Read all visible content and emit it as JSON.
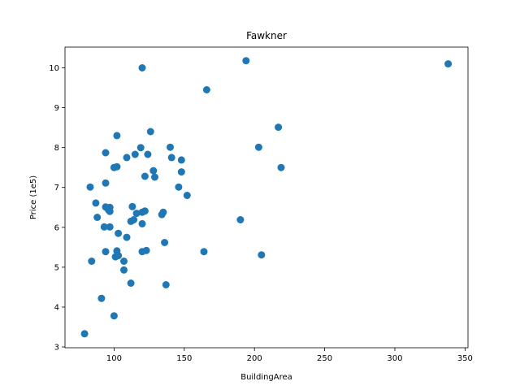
{
  "chart_data": {
    "type": "scatter",
    "title": "Fawkner",
    "xlabel": "BuildingArea",
    "ylabel": "Price (1e5)",
    "xlim": [
      65.04,
      352.1
    ],
    "ylim": [
      2.98,
      10.52
    ],
    "xticks": [
      100,
      150,
      200,
      250,
      300,
      350
    ],
    "yticks": [
      3,
      4,
      5,
      6,
      7,
      8,
      9,
      10
    ],
    "grid": false,
    "marker_color": "#1f77b4",
    "points": [
      {
        "x": 79,
        "y": 3.33
      },
      {
        "x": 83,
        "y": 7.01
      },
      {
        "x": 84,
        "y": 5.15
      },
      {
        "x": 87,
        "y": 6.61
      },
      {
        "x": 88,
        "y": 6.25
      },
      {
        "x": 91,
        "y": 4.22
      },
      {
        "x": 93,
        "y": 6.01
      },
      {
        "x": 94,
        "y": 7.87
      },
      {
        "x": 94,
        "y": 7.11
      },
      {
        "x": 94,
        "y": 5.39
      },
      {
        "x": 94,
        "y": 6.51
      },
      {
        "x": 96,
        "y": 6.44
      },
      {
        "x": 97,
        "y": 6.5
      },
      {
        "x": 97,
        "y": 6.01
      },
      {
        "x": 97,
        "y": 6.4
      },
      {
        "x": 100,
        "y": 3.78
      },
      {
        "x": 100,
        "y": 7.5
      },
      {
        "x": 101,
        "y": 5.26
      },
      {
        "x": 102,
        "y": 7.52
      },
      {
        "x": 102,
        "y": 8.3
      },
      {
        "x": 102,
        "y": 5.41
      },
      {
        "x": 103,
        "y": 5.85
      },
      {
        "x": 103,
        "y": 5.29
      },
      {
        "x": 107,
        "y": 4.93
      },
      {
        "x": 107,
        "y": 5.15
      },
      {
        "x": 109,
        "y": 5.75
      },
      {
        "x": 109,
        "y": 7.75
      },
      {
        "x": 112,
        "y": 4.6
      },
      {
        "x": 112,
        "y": 6.15
      },
      {
        "x": 113,
        "y": 6.52
      },
      {
        "x": 114,
        "y": 6.19
      },
      {
        "x": 115,
        "y": 7.83
      },
      {
        "x": 116,
        "y": 6.35
      },
      {
        "x": 119,
        "y": 8.0
      },
      {
        "x": 120,
        "y": 6.38
      },
      {
        "x": 120,
        "y": 6.09
      },
      {
        "x": 120,
        "y": 5.39
      },
      {
        "x": 120,
        "y": 10.0
      },
      {
        "x": 122,
        "y": 7.28
      },
      {
        "x": 122,
        "y": 6.41
      },
      {
        "x": 123,
        "y": 5.42
      },
      {
        "x": 124,
        "y": 7.83
      },
      {
        "x": 126,
        "y": 8.4
      },
      {
        "x": 128,
        "y": 7.42
      },
      {
        "x": 129,
        "y": 7.26
      },
      {
        "x": 134,
        "y": 6.32
      },
      {
        "x": 135,
        "y": 6.38
      },
      {
        "x": 136,
        "y": 5.62
      },
      {
        "x": 137,
        "y": 4.56
      },
      {
        "x": 140,
        "y": 8.01
      },
      {
        "x": 141,
        "y": 7.75
      },
      {
        "x": 146,
        "y": 7.01
      },
      {
        "x": 148,
        "y": 7.69
      },
      {
        "x": 148,
        "y": 7.39
      },
      {
        "x": 152,
        "y": 6.8
      },
      {
        "x": 164,
        "y": 5.39
      },
      {
        "x": 166,
        "y": 9.45
      },
      {
        "x": 190,
        "y": 6.19
      },
      {
        "x": 194,
        "y": 10.18
      },
      {
        "x": 203,
        "y": 8.01
      },
      {
        "x": 205,
        "y": 5.31
      },
      {
        "x": 217,
        "y": 8.51
      },
      {
        "x": 219,
        "y": 7.5
      },
      {
        "x": 338,
        "y": 10.1
      }
    ]
  }
}
